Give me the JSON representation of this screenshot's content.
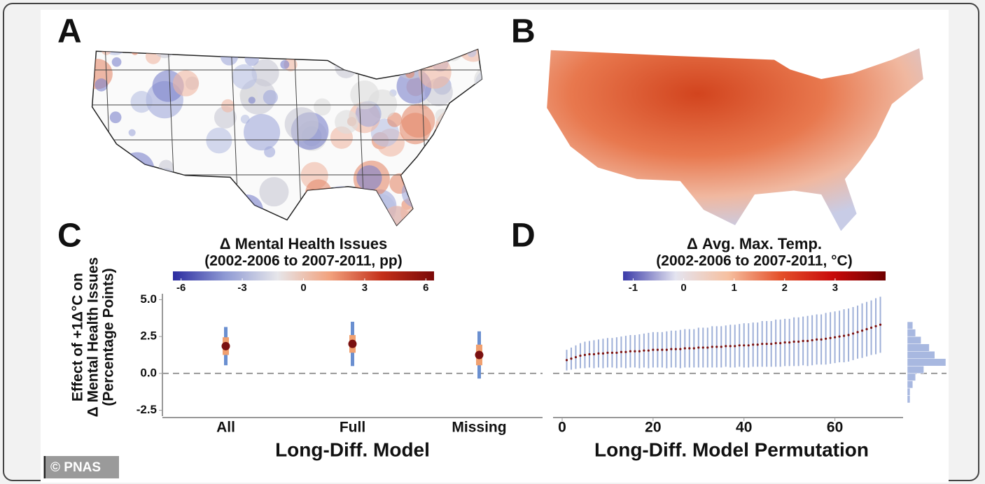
{
  "chart_data": [
    {
      "type": "map",
      "label": "A",
      "colorbar_title": "Δ Mental Health Issues",
      "colorbar_subtitle": "(2002-2006 to 2007-2011, pp)",
      "clim": [
        -6.4,
        6.4
      ],
      "cticks": [
        -6,
        -3,
        0,
        3,
        6
      ],
      "colors": [
        "#2b2ca0",
        "#8f9ad4",
        "#e6e6ea",
        "#f2a27e",
        "#c4301a",
        "#7a0808"
      ]
    },
    {
      "type": "map",
      "label": "B",
      "colorbar_title": "Δ Avg. Max. Temp.",
      "colorbar_subtitle": "(2002-2006 to 2007-2011, °C)",
      "clim": [
        -1.2,
        4
      ],
      "cticks": [
        -1,
        0,
        1,
        2,
        3
      ],
      "colors": [
        "#3a3aa8",
        "#e4e4f0",
        "#f6c0a0",
        "#e4502a",
        "#c80a0a",
        "#6e0000"
      ]
    },
    {
      "type": "errorbar",
      "label": "C",
      "ylabel": [
        "Effect of +1Δ°C on",
        "Δ Mental Health Issues",
        "(Percentage Points)"
      ],
      "xlabel": "Long-Diff. Model",
      "categories": [
        "All",
        "Full",
        "Missing"
      ],
      "values": [
        1.85,
        2.0,
        1.25
      ],
      "errors": [
        1.3,
        1.5,
        1.6
      ],
      "inner_errors": [
        0.6,
        0.6,
        0.7
      ],
      "ylim": [
        -2.9,
        5.4
      ],
      "yticks": [
        {
          "value": 5,
          "label": "5.0"
        },
        2.5,
        {
          "value": 0,
          "label": "0.0"
        },
        -2.5
      ],
      "hline": 0,
      "point_color": "#7a1010",
      "error_color": "#6a8fd0",
      "inner_error_color": "#f0a070"
    },
    {
      "type": "errorbar_x",
      "label": "D",
      "xlabel": "Long-Diff. Model Permutation",
      "x": [
        1,
        2,
        3,
        4,
        5,
        6,
        7,
        8,
        9,
        10,
        11,
        12,
        13,
        14,
        15,
        16,
        17,
        18,
        19,
        20,
        21,
        22,
        23,
        24,
        25,
        26,
        27,
        28,
        29,
        30,
        31,
        32,
        33,
        34,
        35,
        36,
        37,
        38,
        39,
        40,
        41,
        42,
        43,
        44,
        45,
        46,
        47,
        48,
        49,
        50,
        51,
        52,
        53,
        54,
        55,
        56,
        57,
        58,
        59,
        60,
        61,
        62,
        63,
        64,
        65,
        66,
        67,
        68,
        69,
        70
      ],
      "values": [
        0.9,
        1.0,
        1.1,
        1.2,
        1.25,
        1.3,
        1.3,
        1.35,
        1.35,
        1.4,
        1.4,
        1.4,
        1.45,
        1.45,
        1.5,
        1.5,
        1.5,
        1.55,
        1.55,
        1.6,
        1.6,
        1.6,
        1.6,
        1.65,
        1.65,
        1.65,
        1.7,
        1.7,
        1.7,
        1.75,
        1.75,
        1.75,
        1.8,
        1.8,
        1.8,
        1.85,
        1.85,
        1.85,
        1.9,
        1.9,
        1.9,
        1.95,
        1.95,
        2.0,
        2.0,
        2.0,
        2.05,
        2.05,
        2.1,
        2.1,
        2.15,
        2.15,
        2.2,
        2.2,
        2.25,
        2.3,
        2.3,
        2.35,
        2.4,
        2.45,
        2.5,
        2.55,
        2.6,
        2.7,
        2.8,
        2.9,
        3.0,
        3.1,
        3.2,
        3.3
      ],
      "errors": [
        0.7,
        0.75,
        0.8,
        0.85,
        0.9,
        0.9,
        0.95,
        0.95,
        1.0,
        1.0,
        1.0,
        1.05,
        1.05,
        1.1,
        1.1,
        1.1,
        1.15,
        1.15,
        1.2,
        1.2,
        1.2,
        1.2,
        1.25,
        1.25,
        1.25,
        1.3,
        1.3,
        1.3,
        1.3,
        1.35,
        1.35,
        1.35,
        1.4,
        1.4,
        1.4,
        1.4,
        1.45,
        1.45,
        1.45,
        1.5,
        1.5,
        1.5,
        1.5,
        1.55,
        1.55,
        1.55,
        1.6,
        1.6,
        1.6,
        1.6,
        1.65,
        1.65,
        1.65,
        1.7,
        1.7,
        1.7,
        1.7,
        1.75,
        1.75,
        1.75,
        1.75,
        1.8,
        1.8,
        1.8,
        1.8,
        1.85,
        1.85,
        1.85,
        1.9,
        1.9
      ],
      "xlim": [
        -2,
        75
      ],
      "xticks": [
        0,
        20,
        40,
        60
      ],
      "ylim": [
        -2.9,
        5.4
      ],
      "hline": 0,
      "hist_bins": [
        -2,
        -1.5,
        -1,
        -0.5,
        0,
        0.5,
        1,
        1.5,
        2,
        2.5,
        3,
        3.5
      ],
      "hist_counts": [
        1,
        1,
        2,
        3,
        6,
        14,
        10,
        8,
        5,
        3,
        2
      ],
      "point_color": "#7a1010",
      "error_color": "#9fb0d8",
      "hist_color": "#a8b8e0"
    }
  ],
  "watermark": "© PNAS"
}
